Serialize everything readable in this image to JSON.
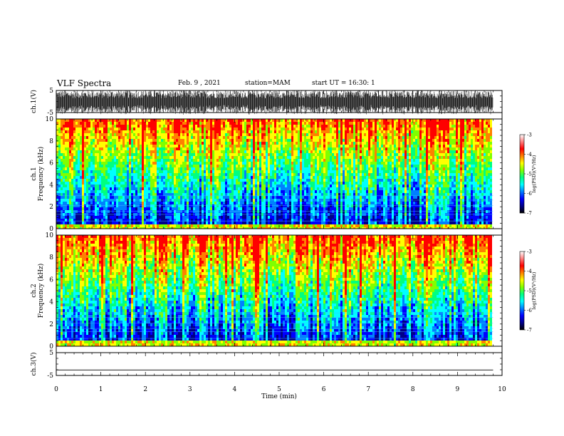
{
  "header": {
    "title": "VLF Spectra",
    "date": "Feb. 9 , 2021",
    "station": "station=MAM",
    "start_ut": "start UT = 16:30: 1"
  },
  "chart_data": [
    {
      "type": "line",
      "panel": "ch1-waveform",
      "ylabel": "ch.1(V)",
      "ylim": [
        -5,
        5
      ],
      "yticks": [
        "5",
        "-5"
      ],
      "xlim": [
        0,
        10
      ],
      "description_values": "dense oscillating waveform, roughly -5 to 5 V across 0-9.8 min"
    },
    {
      "type": "heatmap",
      "panel": "ch1-spectrogram",
      "ylabel_line1": "ch.1",
      "ylabel_line2": "Frequency (kHz)",
      "ylim": [
        0,
        10
      ],
      "yticks": [
        "0",
        "2",
        "4",
        "6",
        "8",
        "10"
      ],
      "xlim": [
        0,
        10
      ],
      "data_end_min": 9.8,
      "colorbar": {
        "label": "log(PSD)(V²/Hz)",
        "ticks": [
          "-3",
          "-4",
          "-5",
          "-6",
          "-7"
        ],
        "range": [
          -7,
          -3
        ]
      }
    },
    {
      "type": "heatmap",
      "panel": "ch2-spectrogram",
      "ylabel_line1": "ch.2",
      "ylabel_line2": "Frequency (kHz)",
      "ylim": [
        0,
        10
      ],
      "yticks": [
        "0",
        "2",
        "4",
        "6",
        "8",
        "10"
      ],
      "xlim": [
        0,
        10
      ],
      "data_end_min": 9.8,
      "colorbar": {
        "label": "log(PSD)(V²/Hz)",
        "ticks": [
          "-3",
          "-4",
          "-5",
          "-6",
          "-7"
        ],
        "range": [
          -7,
          -3
        ]
      }
    },
    {
      "type": "line",
      "panel": "ch3-waveform",
      "ylabel": "ch.3(V)",
      "ylim": [
        -5,
        5
      ],
      "yticks": [
        "5",
        "-5"
      ],
      "xlim": [
        0,
        10
      ],
      "series": [
        {
          "values_const": -2.6
        }
      ],
      "xticks": [
        "0",
        "1",
        "2",
        "3",
        "4",
        "5",
        "6",
        "7",
        "8",
        "9",
        "10"
      ],
      "xlabel": "Time (min)"
    }
  ],
  "colors": {
    "colormap": [
      "#00008a",
      "#0000ff",
      "#0080ff",
      "#00ffff",
      "#00ff80",
      "#80ff00",
      "#ffff00",
      "#ff8000",
      "#ff0000",
      "#ffffff"
    ],
    "axis": "#000000"
  }
}
